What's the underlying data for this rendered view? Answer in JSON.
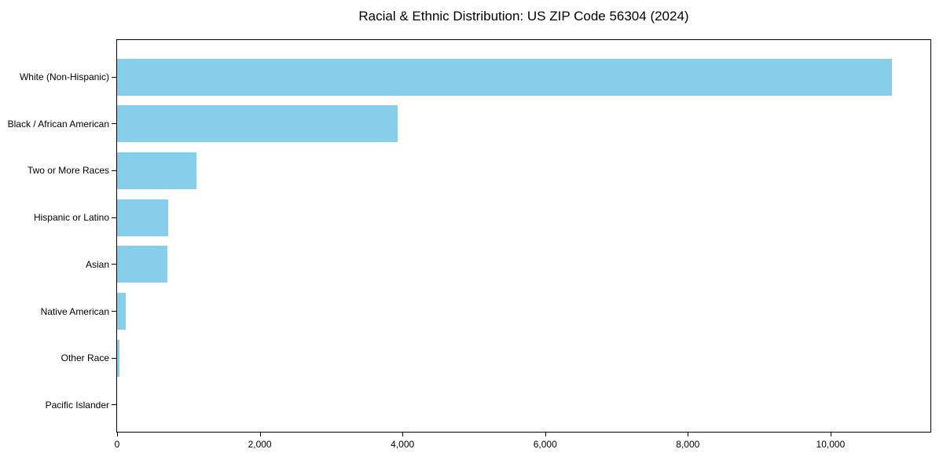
{
  "chart_data": {
    "type": "bar",
    "orientation": "horizontal",
    "title": "Racial & Ethnic Distribution: US ZIP Code 56304 (2024)",
    "categories": [
      "White (Non-Hispanic)",
      "Black / African American",
      "Two or More Races",
      "Hispanic or Latino",
      "Asian",
      "Native American",
      "Other Race",
      "Pacific Islander"
    ],
    "values": [
      10860,
      3935,
      1110,
      715,
      700,
      125,
      35,
      0
    ],
    "bar_color": "#87CEEB",
    "text_color": "#000000",
    "frame_color": "#000000",
    "background_color": "#ffffff",
    "xlabel": "",
    "ylabel": "",
    "xlim": [
      0,
      11400
    ],
    "x_ticks": [
      0,
      2000,
      4000,
      6000,
      8000,
      10000
    ],
    "x_tick_labels": [
      "0",
      "2,000",
      "4,000",
      "6,000",
      "8,000",
      "10,000"
    ],
    "grid": false,
    "legend": null
  }
}
